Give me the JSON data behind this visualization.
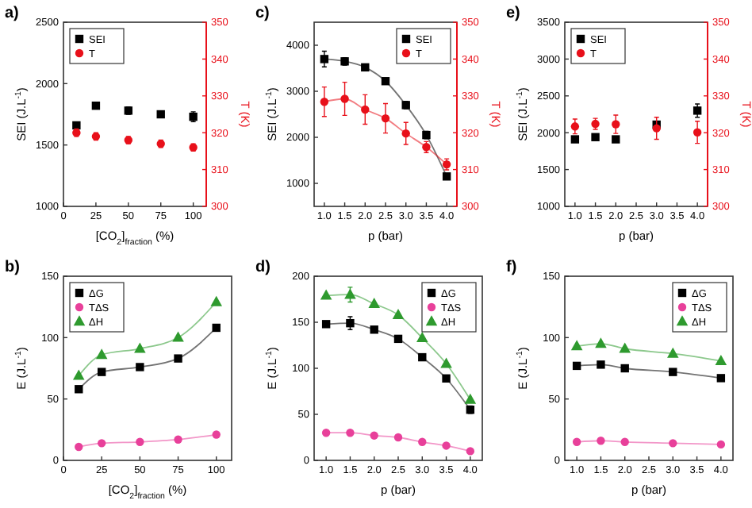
{
  "chart_data": [
    {
      "type": "scatter",
      "title": "a)",
      "xlabel": "[CO$_{2}$]$_{fraction}$ (%)",
      "ylabel": "SEI (J.L$^{-1}$)",
      "y2label": "T (K)",
      "x": [
        10,
        25,
        50,
        75,
        100
      ],
      "xlim": [
        0,
        110
      ],
      "xticks": [
        0,
        25,
        50,
        75,
        100
      ],
      "ylim": [
        1000,
        2500
      ],
      "yticks": [
        1000,
        1500,
        2000,
        2500
      ],
      "y2lim": [
        300,
        350
      ],
      "y2ticks": [
        300,
        310,
        320,
        330,
        340,
        350
      ],
      "legend": "top left",
      "series": [
        {
          "name": "SEI",
          "color": "#000000",
          "marker": "square",
          "values": [
            1660,
            1820,
            1780,
            1750,
            1730
          ],
          "errors": [
            null,
            null,
            30,
            null,
            40
          ]
        },
        {
          "name": "T",
          "color": "#e8101a",
          "marker": "circle",
          "axis": "y2",
          "values": [
            320,
            319,
            318,
            317,
            316
          ],
          "errors": [
            1,
            1,
            1,
            1,
            1
          ]
        }
      ]
    },
    {
      "type": "line",
      "title": "c)",
      "xlabel": "p (bar)",
      "ylabel": "SEI (J.L$^{-1}$)",
      "y2label": "T (K)",
      "x": [
        1,
        1.5,
        2,
        2.5,
        3,
        3.5,
        4
      ],
      "xlim": [
        0.75,
        4.25
      ],
      "xticks": [
        {
          "value": 1,
          "label": "1.0"
        },
        1.5,
        {
          "value": 2,
          "label": "2.0"
        },
        2.5,
        {
          "value": 3,
          "label": "3.0"
        },
        3.5,
        {
          "value": 4,
          "label": "4.0"
        }
      ],
      "ylim": [
        500,
        4500
      ],
      "yticks": [
        1000,
        2000,
        3000,
        4000
      ],
      "y2lim": [
        300,
        350
      ],
      "y2ticks": [
        300,
        310,
        320,
        330,
        340,
        350
      ],
      "legend": "top right",
      "series": [
        {
          "name": "SEI",
          "color": "#000000",
          "marker": "square",
          "values": [
            3700,
            3650,
            3520,
            3220,
            2700,
            2050,
            1150
          ],
          "errors": [
            170,
            80,
            null,
            null,
            80,
            80,
            null
          ]
        },
        {
          "name": "T",
          "color": "#e8101a",
          "marker": "circle",
          "axis": "y2",
          "values": [
            328.4,
            329.2,
            326.3,
            323.9,
            319.8,
            316.1,
            311.4
          ],
          "errors": [
            4,
            4.5,
            4,
            4,
            3,
            1.5,
            1.5
          ]
        }
      ]
    },
    {
      "type": "scatter",
      "title": "e)",
      "xlabel": "p (bar)",
      "ylabel": "SEI (J.L$^{-1}$)",
      "y2label": "T (K)",
      "x": [
        1,
        1.5,
        2,
        3,
        4
      ],
      "xlim": [
        0.75,
        4.25
      ],
      "xticks": [
        {
          "value": 1,
          "label": "1.0"
        },
        1.5,
        {
          "value": 2,
          "label": "2.0"
        },
        2.5,
        {
          "value": 3,
          "label": "3.0"
        },
        3.5,
        {
          "value": 4,
          "label": "4.0"
        }
      ],
      "ylim": [
        1000,
        3500
      ],
      "yticks": [
        1000,
        1500,
        2000,
        2500,
        3000,
        3500
      ],
      "y2lim": [
        300,
        350
      ],
      "y2ticks": [
        300,
        310,
        320,
        330,
        340,
        350
      ],
      "legend": "top left",
      "series": [
        {
          "name": "SEI",
          "color": "#000000",
          "marker": "square",
          "values": [
            1910,
            1940,
            1910,
            2110,
            2300
          ],
          "errors": [
            null,
            null,
            null,
            null,
            90
          ]
        },
        {
          "name": "T",
          "color": "#e8101a",
          "marker": "circle",
          "axis": "y2",
          "values": [
            321.7,
            322.4,
            322.3,
            321.2,
            320.1
          ],
          "errors": [
            2,
            1.5,
            2.5,
            3,
            3
          ]
        }
      ]
    },
    {
      "type": "line",
      "title": "b)",
      "xlabel": "[CO$_{2}$]$_{fraction}$ (%)",
      "ylabel": "E (J.L$^{-1}$)",
      "x": [
        10,
        25,
        50,
        75,
        100
      ],
      "xlim": [
        0,
        110
      ],
      "xticks": [
        0,
        25,
        50,
        75,
        100
      ],
      "ylim": [
        0,
        150
      ],
      "yticks": [
        0,
        50,
        100,
        150
      ],
      "legend": "top left",
      "series": [
        {
          "name": "ΔG",
          "color": "#000000",
          "marker": "square",
          "values": [
            58,
            72,
            76,
            83,
            108
          ]
        },
        {
          "name": "TΔS",
          "color": "#e8409a",
          "marker": "circle",
          "values": [
            11,
            14,
            15,
            17,
            21
          ]
        },
        {
          "name": "ΔH",
          "color": "#2e9a2e",
          "marker": "triangle",
          "values": [
            69,
            86,
            91,
            100,
            129
          ]
        }
      ]
    },
    {
      "type": "line",
      "title": "d)",
      "xlabel": "p (bar)",
      "ylabel": "E (J.L$^{-1}$)",
      "x": [
        1,
        1.5,
        2,
        2.5,
        3,
        3.5,
        4
      ],
      "xlim": [
        0.75,
        4.25
      ],
      "xticks": [
        {
          "value": 1,
          "label": "1.0"
        },
        1.5,
        {
          "value": 2,
          "label": "2.0"
        },
        2.5,
        {
          "value": 3,
          "label": "3.0"
        },
        3.5,
        {
          "value": 4,
          "label": "4.0"
        }
      ],
      "ylim": [
        0,
        200
      ],
      "yticks": [
        0,
        50,
        100,
        150,
        200
      ],
      "legend": "top right",
      "series": [
        {
          "name": "ΔG",
          "color": "#000000",
          "marker": "square",
          "values": [
            148,
            149,
            142,
            132,
            112,
            89,
            55
          ],
          "errors": [
            null,
            7,
            null,
            null,
            null,
            null,
            4
          ]
        },
        {
          "name": "TΔS",
          "color": "#e8409a",
          "marker": "circle",
          "values": [
            30,
            30,
            27,
            25,
            20,
            16,
            10
          ]
        },
        {
          "name": "ΔH",
          "color": "#2e9a2e",
          "marker": "triangle",
          "values": [
            179,
            180,
            170,
            158,
            133,
            105,
            66
          ],
          "errors": [
            null,
            8,
            null,
            null,
            null,
            null,
            null
          ]
        }
      ]
    },
    {
      "type": "line",
      "title": "f)",
      "xlabel": "p (bar)",
      "ylabel": "E (J.L$^{-1}$)",
      "x": [
        1,
        1.5,
        2,
        3,
        4
      ],
      "xlim": [
        0.75,
        4.25
      ],
      "xticks": [
        {
          "value": 1,
          "label": "1.0"
        },
        1.5,
        {
          "value": 2,
          "label": "2.0"
        },
        2.5,
        {
          "value": 3,
          "label": "3.0"
        },
        3.5,
        {
          "value": 4,
          "label": "4.0"
        }
      ],
      "ylim": [
        0,
        150
      ],
      "yticks": [
        0,
        50,
        100,
        150
      ],
      "legend": "top right",
      "series": [
        {
          "name": "ΔG",
          "color": "#000000",
          "marker": "square",
          "values": [
            77,
            78,
            75,
            72,
            67
          ]
        },
        {
          "name": "TΔS",
          "color": "#e8409a",
          "marker": "circle",
          "values": [
            15,
            16,
            15,
            14,
            13
          ]
        },
        {
          "name": "ΔH",
          "color": "#2e9a2e",
          "marker": "triangle",
          "values": [
            93,
            95,
            91,
            87,
            81
          ]
        }
      ]
    }
  ]
}
